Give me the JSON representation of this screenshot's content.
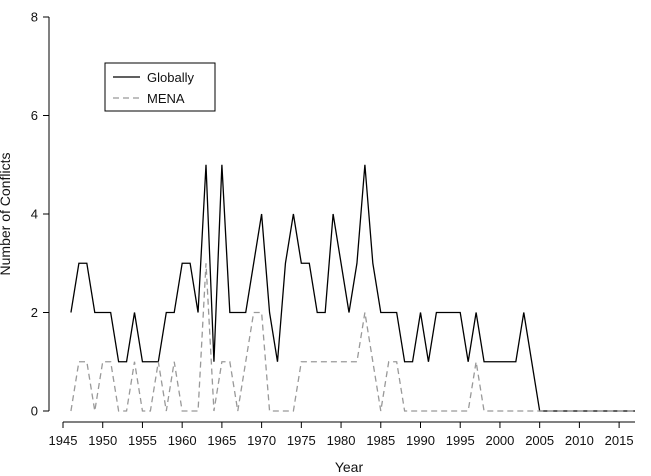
{
  "chart_data": {
    "type": "line",
    "title": "",
    "xlabel": "Year",
    "ylabel": "Number of Conflicts",
    "xlim": [
      1945,
      2017
    ],
    "ylim": [
      0,
      8
    ],
    "x_ticks": [
      1945,
      1950,
      1955,
      1960,
      1965,
      1970,
      1975,
      1980,
      1985,
      1990,
      1995,
      2000,
      2005,
      2010,
      2015
    ],
    "y_ticks": [
      0,
      2,
      4,
      6,
      8
    ],
    "grid": false,
    "legend_position": "top-left",
    "x": [
      1946,
      1947,
      1948,
      1949,
      1950,
      1951,
      1952,
      1953,
      1954,
      1955,
      1956,
      1957,
      1958,
      1959,
      1960,
      1961,
      1962,
      1963,
      1964,
      1965,
      1966,
      1967,
      1968,
      1969,
      1970,
      1971,
      1972,
      1973,
      1974,
      1975,
      1976,
      1977,
      1978,
      1979,
      1980,
      1981,
      1982,
      1983,
      1984,
      1985,
      1986,
      1987,
      1988,
      1989,
      1990,
      1991,
      1992,
      1993,
      1994,
      1995,
      1996,
      1997,
      1998,
      1999,
      2000,
      2001,
      2002,
      2003,
      2004,
      2005,
      2006,
      2007,
      2008,
      2009,
      2010,
      2011,
      2012,
      2013,
      2014,
      2015,
      2016,
      2017
    ],
    "series": [
      {
        "name": "Globally",
        "style": "solid",
        "color": "#000000",
        "values": [
          2,
          3,
          3,
          2,
          2,
          2,
          1,
          1,
          2,
          1,
          1,
          1,
          2,
          2,
          3,
          3,
          2,
          5,
          1,
          5,
          2,
          2,
          2,
          3,
          4,
          2,
          1,
          3,
          4,
          3,
          3,
          2,
          2,
          4,
          3,
          2,
          3,
          5,
          3,
          2,
          2,
          2,
          1,
          1,
          2,
          1,
          2,
          2,
          2,
          2,
          1,
          2,
          1,
          1,
          1,
          1,
          1,
          2,
          1,
          0,
          0,
          0,
          0,
          0,
          0,
          0,
          0,
          0,
          0,
          0,
          0,
          0
        ]
      },
      {
        "name": "MENA",
        "style": "dashed",
        "color": "#999999",
        "values": [
          0,
          1,
          1,
          0,
          1,
          1,
          0,
          0,
          1,
          0,
          0,
          1,
          0,
          1,
          0,
          0,
          0,
          3,
          0,
          1,
          1,
          0,
          1,
          2,
          2,
          0,
          0,
          0,
          0,
          1,
          1,
          1,
          1,
          1,
          1,
          1,
          1,
          2,
          1,
          0,
          1,
          1,
          0,
          0,
          0,
          0,
          0,
          0,
          0,
          0,
          0,
          1,
          0,
          0,
          0,
          0,
          0,
          0,
          0,
          0,
          0,
          0,
          0,
          0,
          0,
          0,
          0,
          0,
          0,
          0,
          0,
          0
        ]
      }
    ]
  }
}
